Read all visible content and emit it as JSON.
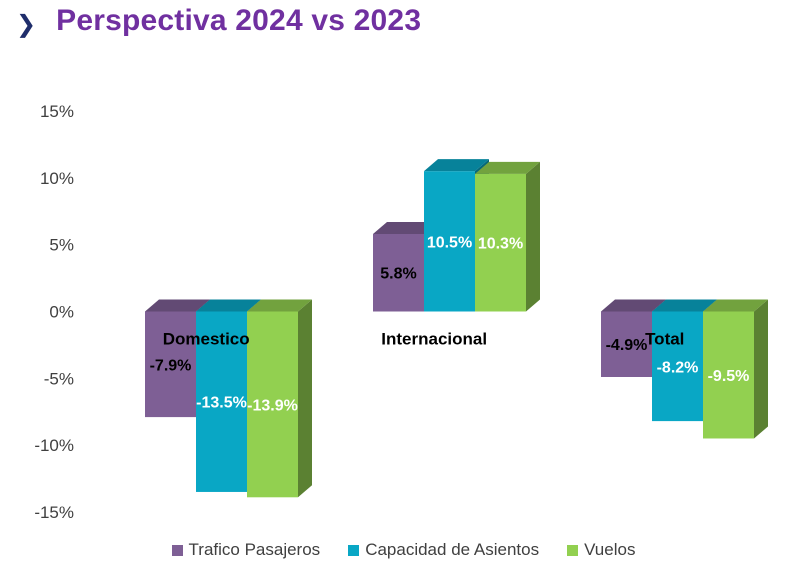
{
  "header": {
    "chevron_icon": "chevron-right-icon",
    "title": "Perspectiva 2024 vs 2023"
  },
  "chart_data": {
    "type": "bar",
    "style": "3d-clustered",
    "categories": [
      "Domestico",
      "Internacional",
      "Total"
    ],
    "series": [
      {
        "name": "Trafico Pasajeros",
        "color": "#7e5f95",
        "values": [
          -7.9,
          5.8,
          -4.9
        ]
      },
      {
        "name": "Capacidad de Asientos",
        "color": "#09a7c5",
        "values": [
          -13.5,
          10.5,
          -8.2
        ]
      },
      {
        "name": "Vuelos",
        "color": "#92d050",
        "values": [
          -13.9,
          10.3,
          -9.5
        ]
      }
    ],
    "data_labels": [
      [
        "-7.9%",
        "5.8%",
        "-4.9%"
      ],
      [
        "-13.5%",
        "10.5%",
        "-8.2%"
      ],
      [
        "-13.9%",
        "10.3%",
        "-9.5%"
      ]
    ],
    "ylim": [
      -15,
      15
    ],
    "yticks": [
      15,
      10,
      5,
      0,
      -5,
      -10,
      -15
    ],
    "ytick_labels": [
      "15%",
      "10%",
      "5%",
      "0%",
      "-5%",
      "-10%",
      "-15%"
    ],
    "grid": false,
    "legend_position": "bottom"
  }
}
